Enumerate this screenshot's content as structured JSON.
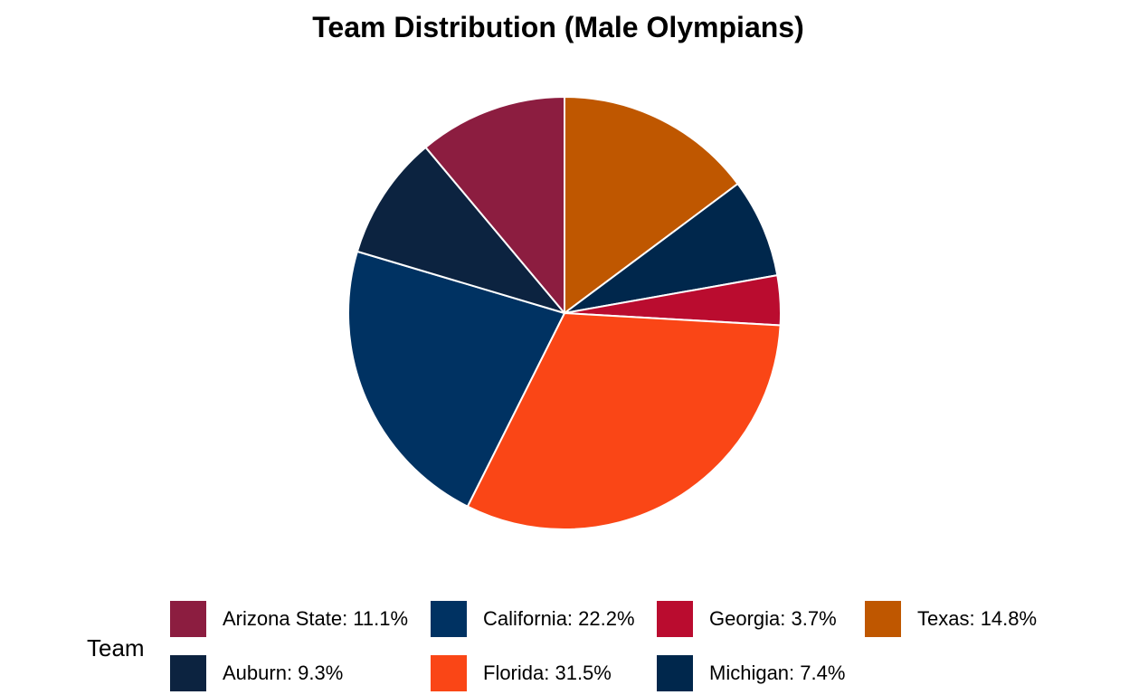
{
  "chart_data": {
    "type": "pie",
    "title": "Team Distribution (Male Olympians)",
    "legend_title": "Team",
    "legend_position": "bottom",
    "slices": [
      {
        "label": "Texas",
        "value": 14.8,
        "legend_text": "Texas: 14.8%",
        "color": "#BF5700"
      },
      {
        "label": "Michigan",
        "value": 7.4,
        "legend_text": "Michigan: 7.4%",
        "color": "#00274C"
      },
      {
        "label": "Georgia",
        "value": 3.7,
        "legend_text": "Georgia: 3.7%",
        "color": "#BA0C2F"
      },
      {
        "label": "Florida",
        "value": 31.5,
        "legend_text": "Florida: 31.5%",
        "color": "#FA4616"
      },
      {
        "label": "California",
        "value": 22.2,
        "legend_text": "California: 22.2%",
        "color": "#003262"
      },
      {
        "label": "Auburn",
        "value": 9.3,
        "legend_text": "Auburn: 9.3%",
        "color": "#0C2340"
      },
      {
        "label": "Arizona State",
        "value": 11.1,
        "legend_text": "Arizona State: 11.1%",
        "color": "#8C1D40"
      }
    ],
    "legend_order": [
      "Arizona State",
      "California",
      "Georgia",
      "Texas",
      "Auburn",
      "Florida",
      "Michigan"
    ]
  }
}
